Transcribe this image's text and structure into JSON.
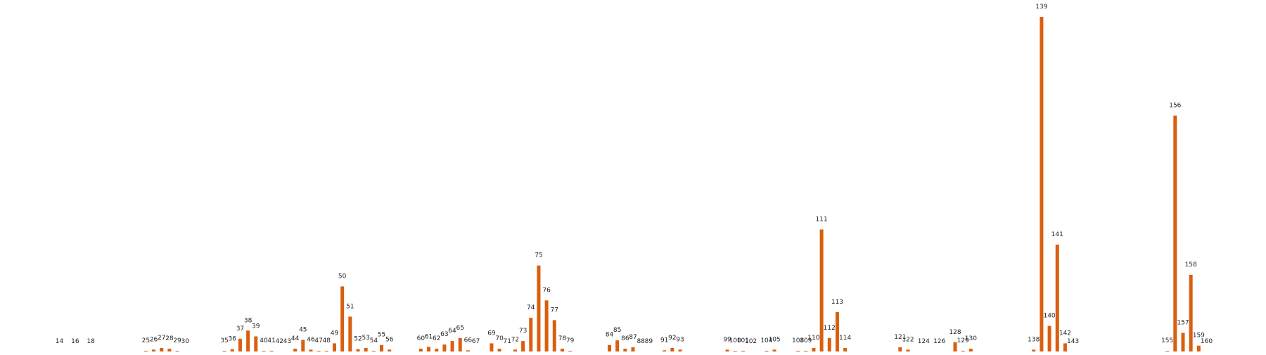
{
  "chart_data": {
    "type": "bar",
    "title": "",
    "xlabel": "",
    "ylabel": "",
    "ylim": [
      0,
      140
    ],
    "grid": false,
    "legend": "none",
    "colors": {
      "bar": "#d95f0e",
      "label": "#222222"
    },
    "x": [
      14,
      16,
      18,
      25,
      26,
      27,
      28,
      29,
      30,
      35,
      36,
      37,
      38,
      39,
      40,
      41,
      42,
      43,
      44,
      45,
      46,
      47,
      48,
      49,
      50,
      51,
      52,
      53,
      54,
      55,
      56,
      60,
      61,
      62,
      63,
      64,
      65,
      66,
      67,
      69,
      70,
      71,
      72,
      73,
      74,
      75,
      76,
      77,
      78,
      79,
      84,
      85,
      86,
      87,
      88,
      89,
      91,
      92,
      93,
      99,
      100,
      101,
      102,
      104,
      105,
      108,
      109,
      110,
      111,
      112,
      113,
      114,
      121,
      122,
      124,
      126,
      128,
      129,
      130,
      138,
      139,
      140,
      141,
      142,
      143,
      155,
      156,
      157,
      158,
      159,
      160
    ],
    "values": [
      0,
      0,
      0,
      0.3,
      0.8,
      1.5,
      1.2,
      0.3,
      0,
      0.3,
      1,
      5.5,
      9,
      6.5,
      0.3,
      0.3,
      0,
      0,
      1.2,
      5,
      0.8,
      0.3,
      0.3,
      3.5,
      28,
      15,
      1,
      1.5,
      0.3,
      2.8,
      0.8,
      1.2,
      2,
      1.2,
      3,
      4.5,
      5.8,
      0.5,
      0,
      3.5,
      1.2,
      0,
      0.8,
      4.5,
      14.5,
      37,
      22,
      13.5,
      1.2,
      0.3,
      2.8,
      4.8,
      1.2,
      1.8,
      0,
      0,
      0.5,
      1.5,
      0.8,
      0.8,
      0.3,
      0.3,
      0,
      0.3,
      0.8,
      0.3,
      0.3,
      1.5,
      52.5,
      5.8,
      17,
      1.5,
      1.8,
      0.8,
      0,
      0,
      4,
      0.3,
      1.2,
      0.8,
      144,
      11,
      46,
      3.5,
      0,
      0.3,
      101.5,
      8,
      33,
      2.5,
      0
    ]
  }
}
